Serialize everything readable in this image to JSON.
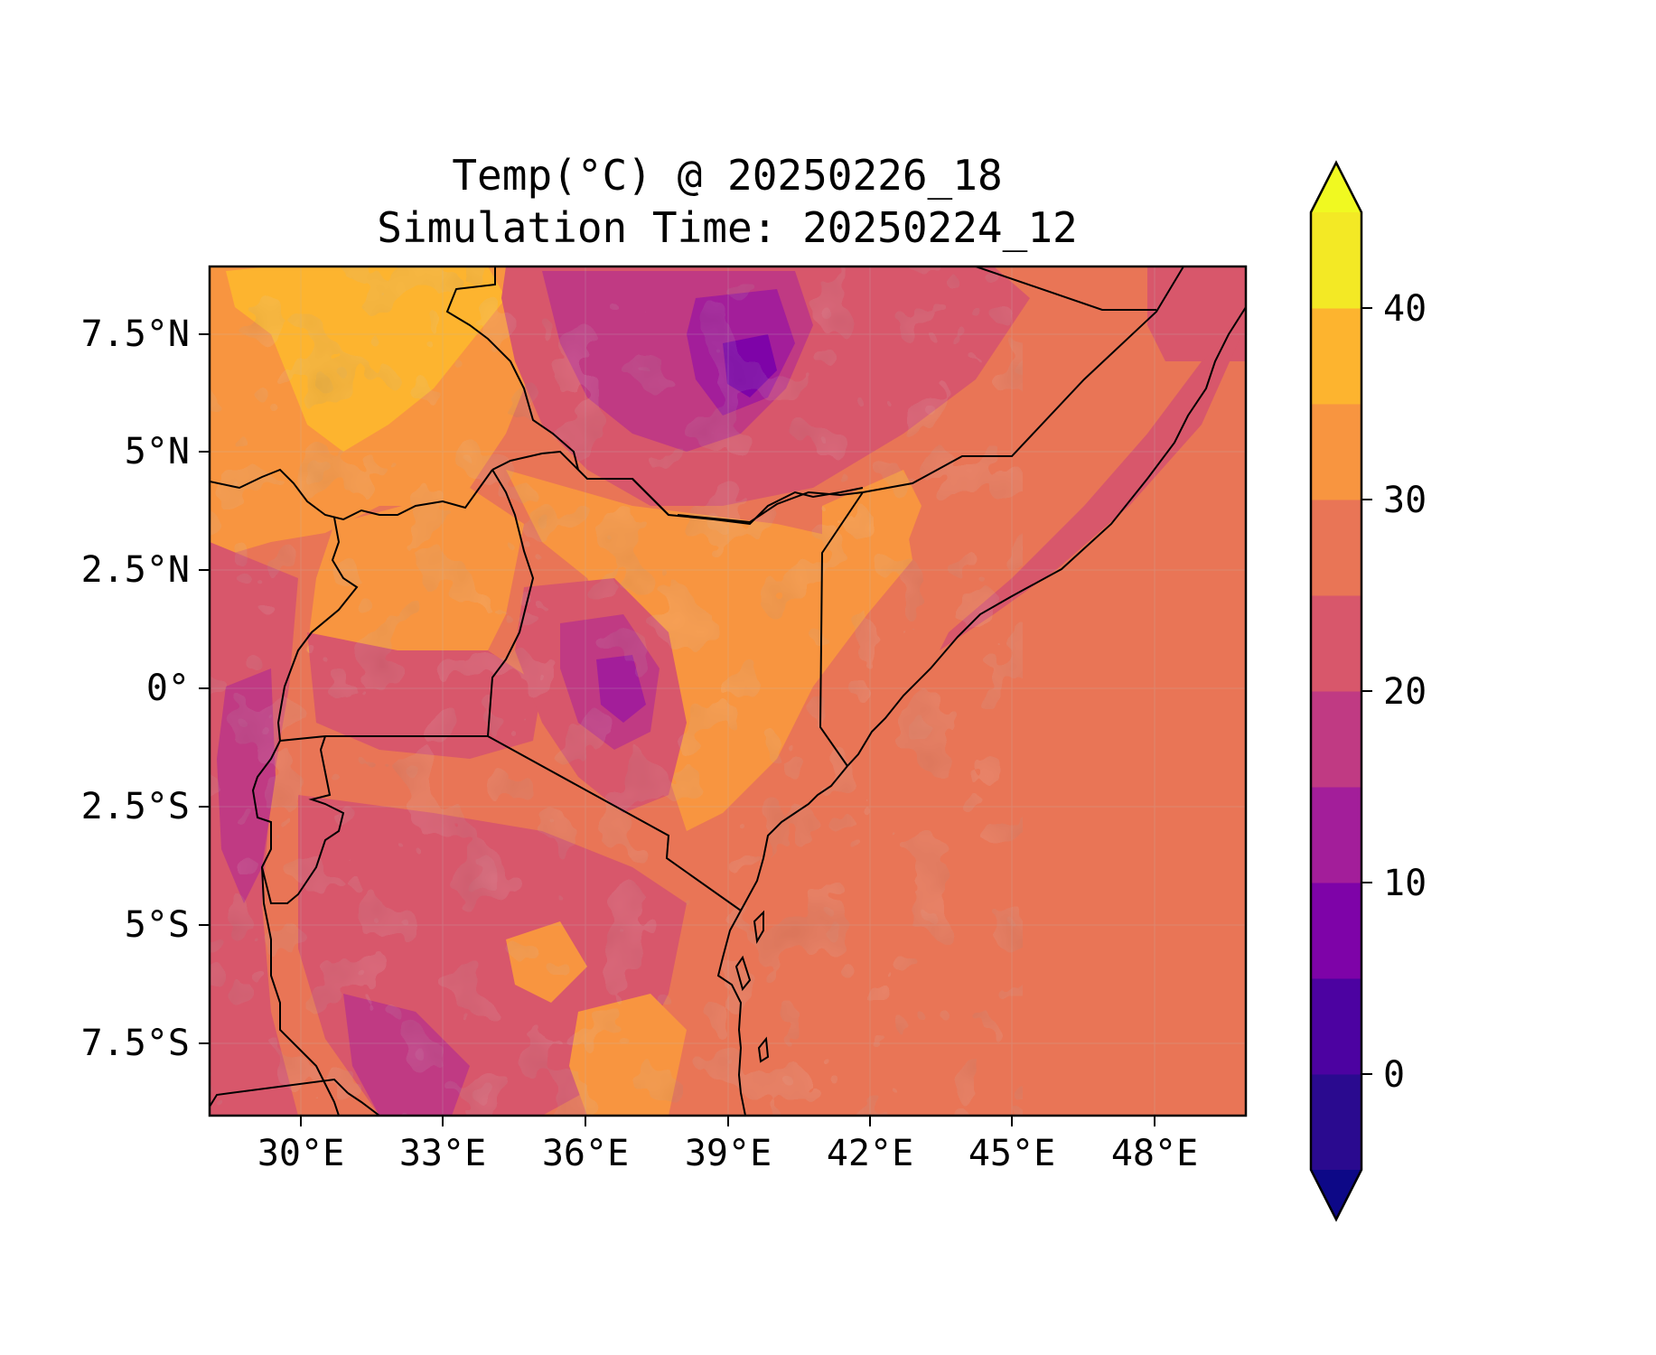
{
  "title": {
    "line1": "Temp(°C) @ 20250226_18",
    "line2": "Simulation Time: 20250224_12"
  },
  "map": {
    "x_ticks": [
      "30°E",
      "33°E",
      "36°E",
      "39°E",
      "42°E",
      "45°E",
      "48°E"
    ],
    "y_ticks": [
      "7.5°N",
      "5°N",
      "2.5°N",
      "0°",
      "2.5°S",
      "5°S",
      "7.5°S"
    ],
    "sea_color": "#e97556",
    "boundary_color": "#000000"
  },
  "colorbar": {
    "ticks": [
      "40",
      "30",
      "20",
      "10",
      "0"
    ],
    "levels": [
      -5,
      0,
      5,
      10,
      15,
      20,
      25,
      30,
      35,
      40,
      45
    ],
    "colors": [
      "#2a0a8f",
      "#4c02a1",
      "#7e03a8",
      "#a31e9a",
      "#c03a83",
      "#d8576b",
      "#e97556",
      "#f89540",
      "#fdb42f",
      "#f3e925"
    ],
    "extend_low_color": "#0d0887",
    "extend_high_color": "#f0f921",
    "extend": "both"
  }
}
